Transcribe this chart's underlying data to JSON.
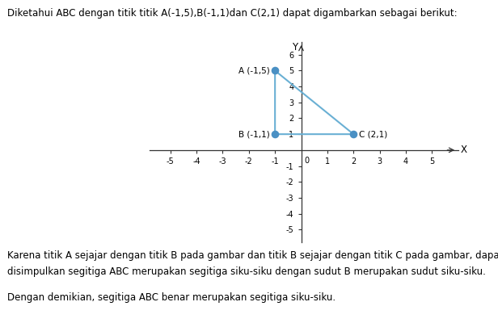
{
  "title_text": "Diketahui ABC dengan titik titik A(-1,5),B(-1,1)dan C(2,1) dapat digambarkan sebagai berikut:",
  "point_A": [
    -1,
    5
  ],
  "point_B": [
    -1,
    1
  ],
  "point_C": [
    2,
    1
  ],
  "label_A": "A (-1,5)",
  "label_B": "B (-1,1)",
  "label_C": "C (2,1)",
  "triangle_color": "#6ab0d4",
  "point_color": "#4a90c4",
  "xlim": [
    -5.8,
    6.0
  ],
  "ylim": [
    -5.8,
    6.8
  ],
  "xticks": [
    -5,
    -4,
    -3,
    -2,
    -1,
    1,
    2,
    3,
    4,
    5
  ],
  "yticks": [
    -5,
    -4,
    -3,
    -2,
    -1,
    1,
    2,
    3,
    4,
    5,
    6
  ],
  "xlabel": "X",
  "ylabel": "Y",
  "footer_text1": "Karena titik A sejajar dengan titik B pada gambar dan titik B sejajar dengan titik C pada gambar, dapat",
  "footer_text2": "disimpulkan segitiga ABC merupakan segitiga siku-siku dengan sudut B merupakan sudut siku-siku.",
  "footer_text3": "Dengan demikian, segitiga ABC benar merupakan segitiga siku-siku.",
  "background_color": "#ffffff",
  "text_color": "#000000",
  "axis_color": "#333333"
}
